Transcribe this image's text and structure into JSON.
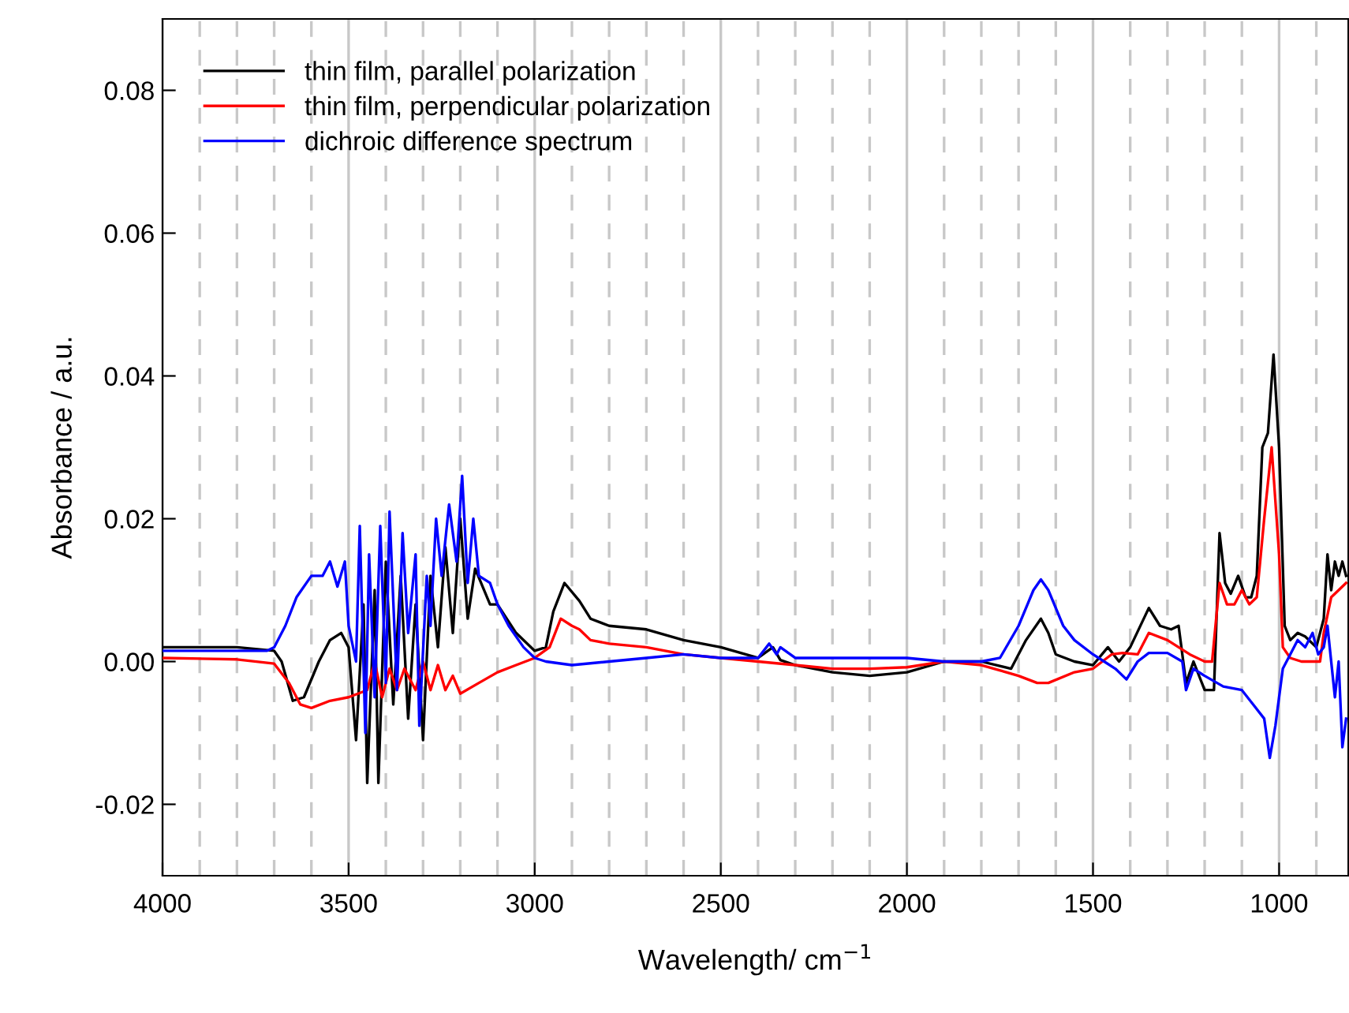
{
  "chart_data": {
    "type": "line",
    "xlabel": "Wavelength/ cm$^{−1}$",
    "ylabel": "Absorbance / a.u.",
    "xlim": [
      4000,
      814
    ],
    "ylim": [
      -0.03,
      0.09
    ],
    "xticks": [
      4000,
      {
        "value": 3900,
        "label": null
      },
      {
        "value": 3800,
        "label": null
      },
      {
        "value": 3700,
        "label": null
      },
      {
        "value": 3600,
        "label": null
      },
      3500,
      {
        "value": 3400,
        "label": null
      },
      {
        "value": 3300,
        "label": null
      },
      {
        "value": 3200,
        "label": null
      },
      {
        "value": 3100,
        "label": null
      },
      3000,
      {
        "value": 2900,
        "label": null
      },
      {
        "value": 2800,
        "label": null
      },
      {
        "value": 2700,
        "label": null
      },
      {
        "value": 2600,
        "label": null
      },
      2500,
      {
        "value": 2400,
        "label": null
      },
      {
        "value": 2300,
        "label": null
      },
      {
        "value": 2200,
        "label": null
      },
      {
        "value": 2100,
        "label": null
      },
      2000,
      {
        "value": 1900,
        "label": null
      },
      {
        "value": 1800,
        "label": null
      },
      {
        "value": 1700,
        "label": null
      },
      {
        "value": 1600,
        "label": null
      },
      1500,
      {
        "value": 1400,
        "label": null
      },
      {
        "value": 1300,
        "label": null
      },
      {
        "value": 1200,
        "label": null
      },
      {
        "value": 1100,
        "label": null
      },
      1000,
      {
        "value": 900,
        "label": null
      }
    ],
    "yticks": [
      {
        "value": -0.02,
        "label": "-0.02"
      },
      {
        "value": 0,
        "label": "0.00"
      },
      {
        "value": 0.02,
        "label": "0.02"
      },
      {
        "value": 0.04,
        "label": "0.04"
      },
      {
        "value": 0.06,
        "label": "0.06"
      },
      {
        "value": 0.08,
        "label": "0.08"
      }
    ],
    "grid": "x",
    "legend": "top left",
    "line_style": "solid",
    "marker": "none",
    "series": [
      {
        "name": "thin film, parallel polarization",
        "color": "#000000",
        "x": [
          4000,
          3800,
          3700,
          3680,
          3650,
          3620,
          3580,
          3550,
          3520,
          3500,
          3480,
          3460,
          3450,
          3430,
          3420,
          3400,
          3380,
          3360,
          3340,
          3320,
          3300,
          3280,
          3260,
          3240,
          3220,
          3200,
          3180,
          3160,
          3120,
          3100,
          3050,
          3000,
          2970,
          2950,
          2920,
          2880,
          2850,
          2800,
          2700,
          2600,
          2500,
          2400,
          2360,
          2340,
          2300,
          2200,
          2100,
          2000,
          1900,
          1800,
          1720,
          1680,
          1640,
          1620,
          1600,
          1550,
          1500,
          1460,
          1430,
          1400,
          1350,
          1320,
          1290,
          1270,
          1250,
          1230,
          1200,
          1175,
          1160,
          1145,
          1130,
          1110,
          1090,
          1075,
          1060,
          1045,
          1030,
          1015,
          1000,
          985,
          970,
          950,
          930,
          900,
          880,
          870,
          860,
          850,
          840,
          830,
          820
        ],
        "values": [
          0.002,
          0.002,
          0.0015,
          0.0,
          -0.0055,
          -0.005,
          0.0,
          0.003,
          0.004,
          0.002,
          -0.011,
          0.008,
          -0.017,
          0.01,
          -0.017,
          0.014,
          -0.006,
          0.012,
          -0.008,
          0.008,
          -0.011,
          0.012,
          0.002,
          0.016,
          0.004,
          0.02,
          0.006,
          0.013,
          0.008,
          0.008,
          0.004,
          0.0015,
          0.002,
          0.007,
          0.011,
          0.0085,
          0.006,
          0.005,
          0.0045,
          0.003,
          0.002,
          0.0005,
          0.002,
          0.0002,
          -0.0005,
          -0.0015,
          -0.002,
          -0.0015,
          0.0,
          0.0,
          -0.001,
          0.003,
          0.006,
          0.004,
          0.001,
          0.0,
          -0.0005,
          0.002,
          0.0,
          0.002,
          0.0075,
          0.005,
          0.0045,
          0.005,
          -0.003,
          0.0,
          -0.004,
          -0.004,
          0.018,
          0.011,
          0.0095,
          0.012,
          0.009,
          0.009,
          0.012,
          0.03,
          0.032,
          0.043,
          0.03,
          0.005,
          0.003,
          0.004,
          0.0035,
          0.002,
          0.006,
          0.015,
          0.01,
          0.014,
          0.012,
          0.014,
          0.012
        ]
      },
      {
        "name": "thin film, perpendicular polarization",
        "color": "#ff0000",
        "x": [
          4000,
          3800,
          3700,
          3660,
          3630,
          3600,
          3550,
          3500,
          3450,
          3430,
          3410,
          3390,
          3370,
          3350,
          3320,
          3300,
          3280,
          3260,
          3240,
          3220,
          3200,
          3150,
          3100,
          3050,
          3000,
          2960,
          2930,
          2900,
          2880,
          2850,
          2800,
          2700,
          2600,
          2500,
          2400,
          2300,
          2200,
          2100,
          2000,
          1900,
          1800,
          1700,
          1650,
          1620,
          1550,
          1500,
          1450,
          1420,
          1380,
          1350,
          1300,
          1270,
          1240,
          1200,
          1180,
          1160,
          1140,
          1120,
          1100,
          1080,
          1060,
          1040,
          1020,
          1000,
          990,
          970,
          940,
          910,
          890,
          880,
          860,
          840,
          820
        ],
        "values": [
          0.0005,
          0.0003,
          -0.0003,
          -0.003,
          -0.006,
          -0.0065,
          -0.0055,
          -0.005,
          -0.004,
          0.0,
          -0.005,
          -0.001,
          -0.004,
          -0.001,
          -0.004,
          0.0,
          -0.004,
          -0.0005,
          -0.004,
          -0.002,
          -0.0045,
          -0.003,
          -0.0015,
          -0.0005,
          0.0005,
          0.002,
          0.006,
          0.005,
          0.0045,
          0.003,
          0.0025,
          0.002,
          0.001,
          0.0005,
          0.0,
          -0.0005,
          -0.001,
          -0.001,
          -0.0008,
          0.0,
          -0.0005,
          -0.002,
          -0.003,
          -0.003,
          -0.0015,
          -0.001,
          0.001,
          0.0012,
          0.001,
          0.004,
          0.003,
          0.002,
          0.001,
          0.0,
          0.0,
          0.011,
          0.008,
          0.008,
          0.01,
          0.008,
          0.009,
          0.02,
          0.03,
          0.015,
          0.002,
          0.0005,
          0.0,
          0.0,
          0.0,
          0.004,
          0.009,
          0.01,
          0.011
        ]
      },
      {
        "name": "dichroic difference spectrum",
        "color": "#0000ff",
        "x": [
          4000,
          3800,
          3720,
          3700,
          3670,
          3640,
          3600,
          3570,
          3550,
          3530,
          3510,
          3500,
          3480,
          3470,
          3455,
          3445,
          3430,
          3415,
          3400,
          3390,
          3370,
          3355,
          3340,
          3320,
          3310,
          3290,
          3280,
          3265,
          3250,
          3230,
          3210,
          3195,
          3180,
          3165,
          3150,
          3120,
          3100,
          3070,
          3030,
          3000,
          2970,
          2900,
          2800,
          2700,
          2600,
          2500,
          2400,
          2370,
          2350,
          2340,
          2300,
          2200,
          2000,
          1900,
          1800,
          1750,
          1700,
          1660,
          1640,
          1620,
          1580,
          1550,
          1500,
          1470,
          1440,
          1410,
          1380,
          1350,
          1300,
          1260,
          1250,
          1230,
          1200,
          1150,
          1100,
          1070,
          1040,
          1025,
          1010,
          990,
          970,
          950,
          930,
          910,
          895,
          880,
          870,
          850,
          840,
          830,
          820
        ],
        "values": [
          0.0015,
          0.0015,
          0.0015,
          0.002,
          0.005,
          0.009,
          0.012,
          0.012,
          0.014,
          0.0105,
          0.014,
          0.005,
          0.0,
          0.019,
          -0.01,
          0.015,
          -0.005,
          0.019,
          -0.003,
          0.021,
          -0.004,
          0.018,
          0.004,
          0.015,
          -0.009,
          0.012,
          0.005,
          0.02,
          0.012,
          0.022,
          0.014,
          0.026,
          0.011,
          0.02,
          0.012,
          0.011,
          0.008,
          0.005,
          0.002,
          0.0005,
          0.0,
          -0.0005,
          0.0,
          0.0005,
          0.001,
          0.0005,
          0.0005,
          0.0025,
          0.001,
          0.002,
          0.0005,
          0.0005,
          0.0005,
          0.0,
          0.0,
          0.0005,
          0.005,
          0.01,
          0.0115,
          0.01,
          0.005,
          0.003,
          0.001,
          0.0,
          -0.001,
          -0.0025,
          0.0,
          0.0012,
          0.0012,
          0.0,
          -0.004,
          -0.001,
          -0.002,
          -0.0035,
          -0.004,
          -0.006,
          -0.008,
          -0.0135,
          -0.009,
          -0.001,
          0.001,
          0.003,
          0.002,
          0.004,
          0.001,
          0.002,
          0.005,
          -0.005,
          0.0,
          -0.012,
          -0.008
        ]
      }
    ]
  }
}
